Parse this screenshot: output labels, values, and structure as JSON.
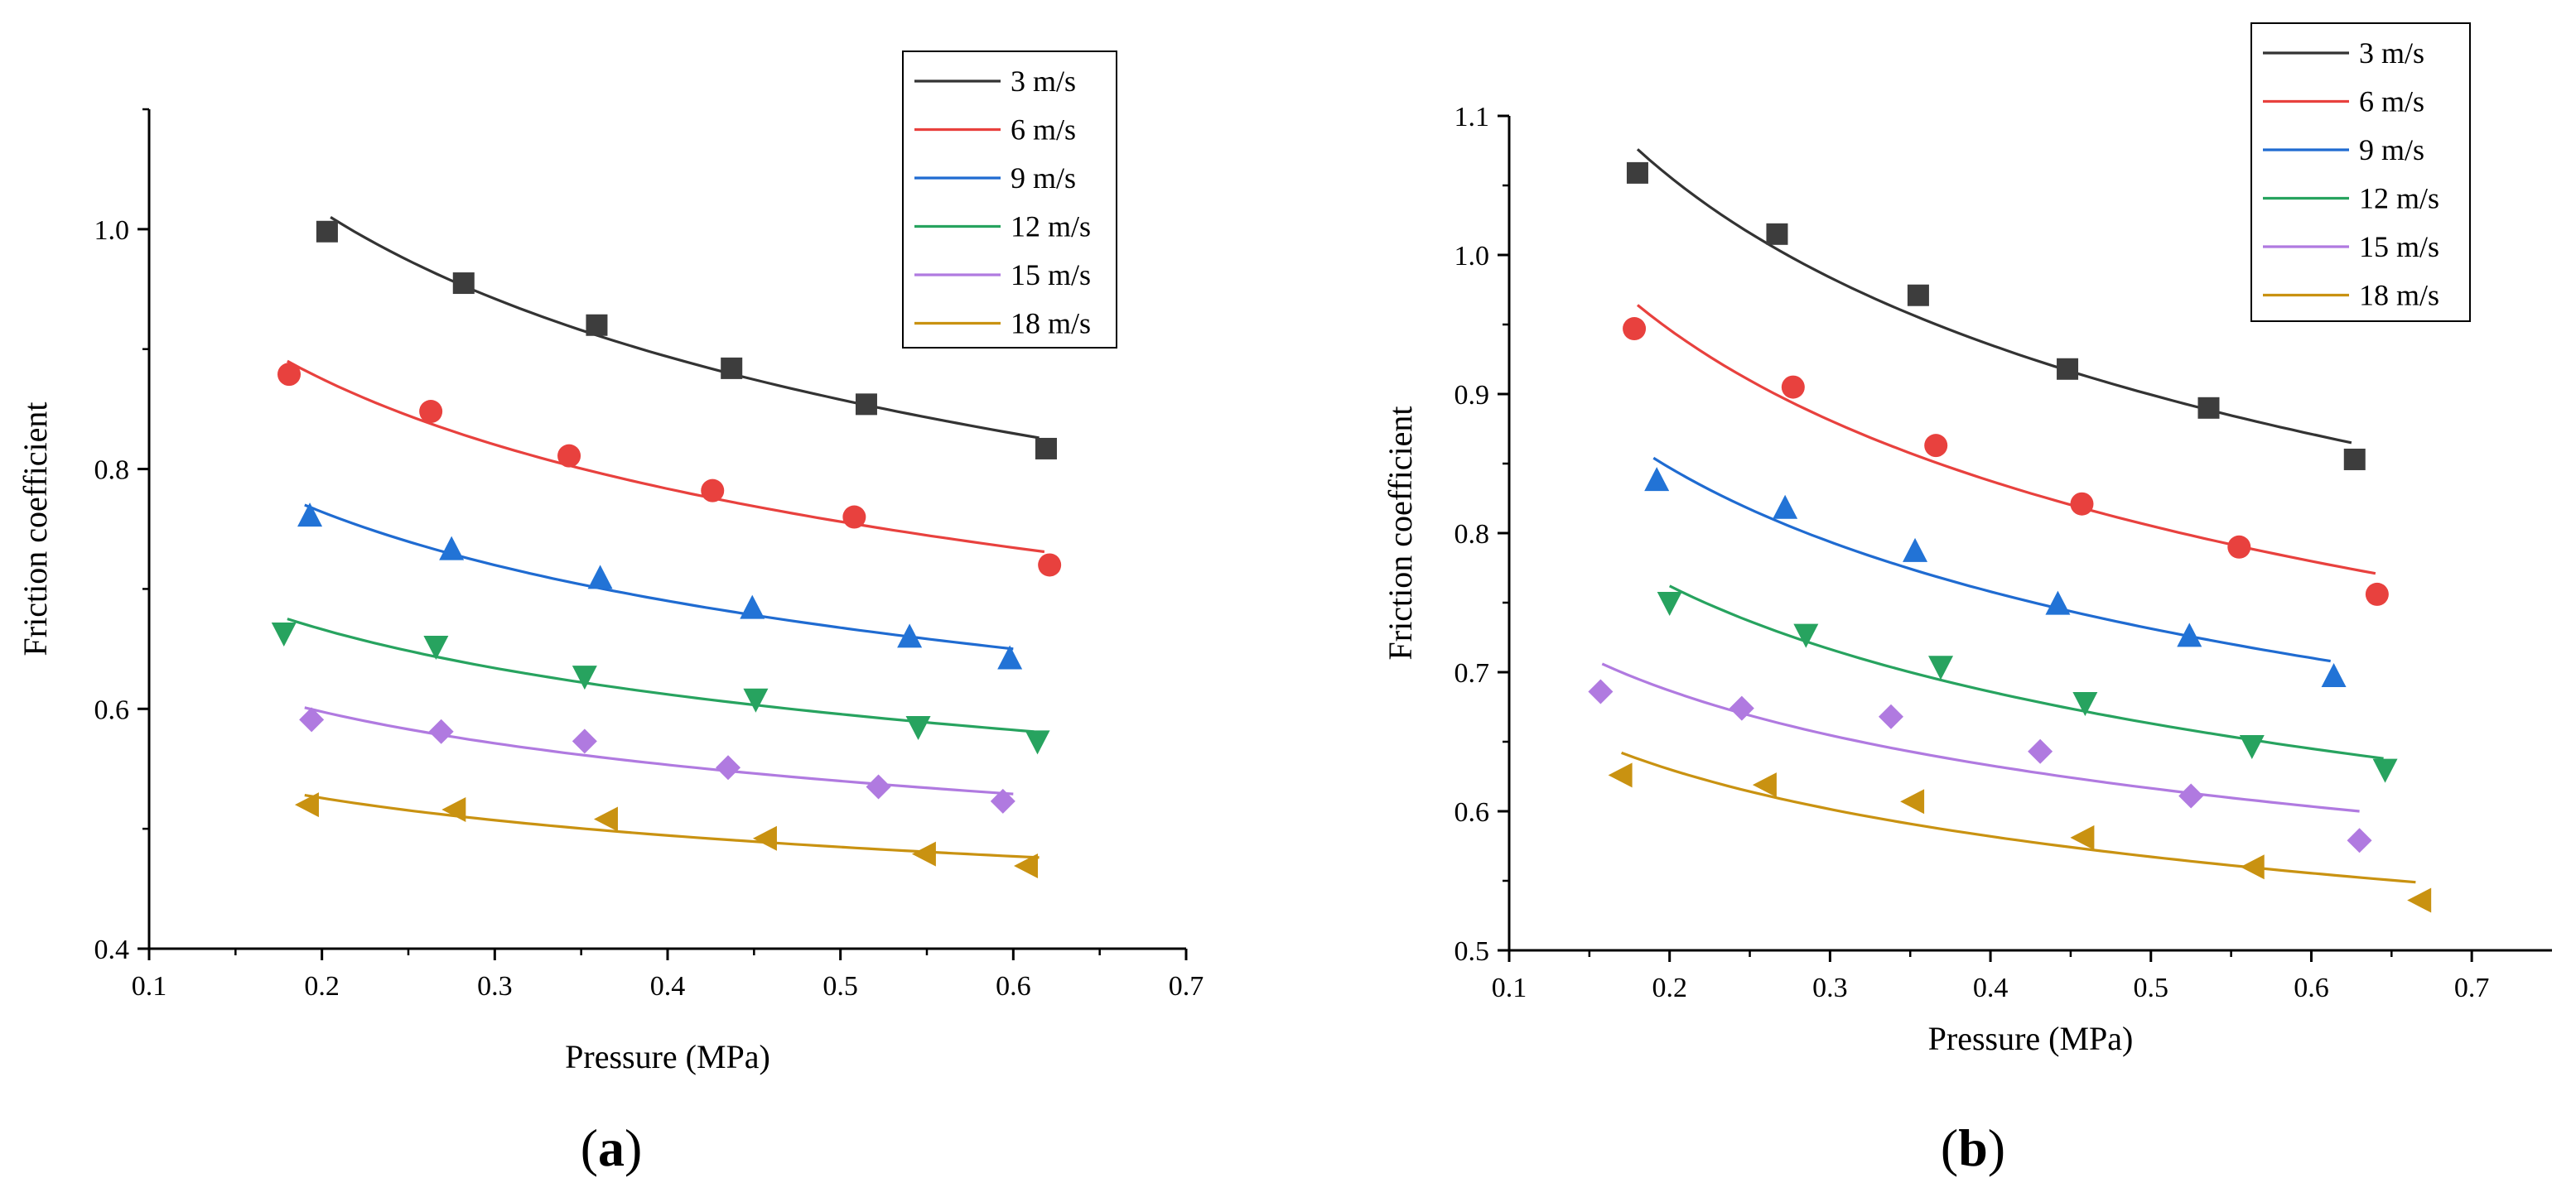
{
  "figure": {
    "panels": [
      {
        "label_open": "(",
        "label_letter": "a",
        "label_close": ")"
      },
      {
        "label_open": "(",
        "label_letter": "b",
        "label_close": ")"
      }
    ]
  },
  "series_styles": [
    {
      "name": "3 m/s",
      "line_color": "#333333",
      "marker_color": "#3d3d3d",
      "marker": "square"
    },
    {
      "name": "6 m/s",
      "line_color": "#e8413e",
      "marker_color": "#e8413e",
      "marker": "circle"
    },
    {
      "name": "9 m/s",
      "line_color": "#1f6bd1",
      "marker_color": "#2273d6",
      "marker": "triangle-up"
    },
    {
      "name": "12 m/s",
      "line_color": "#27a35f",
      "marker_color": "#27a35f",
      "marker": "triangle-down"
    },
    {
      "name": "15 m/s",
      "line_color": "#b07ae0",
      "marker_color": "#b07ae0",
      "marker": "diamond"
    },
    {
      "name": "18 m/s",
      "line_color": "#c99211",
      "marker_color": "#c99211",
      "marker": "triangle-left"
    }
  ],
  "chart_data": [
    {
      "type": "scatter",
      "title": "",
      "xlabel": "Pressure (MPa)",
      "ylabel": "Friction coefficient",
      "xlim": [
        0.1,
        0.7
      ],
      "ylim": [
        0.4,
        1.1
      ],
      "xticks": [
        "0.1",
        "0.2",
        "0.3",
        "0.4",
        "0.5",
        "0.6",
        "0.7"
      ],
      "yticks": [
        "0.4",
        "0.6",
        "0.8",
        "1.0"
      ],
      "legend_position": "top-right",
      "series": [
        {
          "name": "3 m/s",
          "x": [
            0.203,
            0.282,
            0.359,
            0.437,
            0.515,
            0.619
          ],
          "y": [
            0.998,
            0.955,
            0.92,
            0.884,
            0.854,
            0.817
          ],
          "fit_x": [
            0.205,
            0.615
          ],
          "fit_y": [
            1.01,
            0.826
          ]
        },
        {
          "name": "6 m/s",
          "x": [
            0.181,
            0.263,
            0.343,
            0.426,
            0.508,
            0.621
          ],
          "y": [
            0.879,
            0.848,
            0.811,
            0.782,
            0.76,
            0.72
          ],
          "fit_x": [
            0.18,
            0.618
          ],
          "fit_y": [
            0.89,
            0.731
          ]
        },
        {
          "name": "9 m/s",
          "x": [
            0.193,
            0.275,
            0.361,
            0.449,
            0.54,
            0.598
          ],
          "y": [
            0.761,
            0.733,
            0.709,
            0.684,
            0.66,
            0.642
          ],
          "fit_x": [
            0.19,
            0.6
          ],
          "fit_y": [
            0.77,
            0.65
          ]
        },
        {
          "name": "12 m/s",
          "x": [
            0.178,
            0.266,
            0.352,
            0.451,
            0.545,
            0.614
          ],
          "y": [
            0.663,
            0.652,
            0.627,
            0.608,
            0.585,
            0.573
          ],
          "fit_x": [
            0.18,
            0.612
          ],
          "fit_y": [
            0.675,
            0.581
          ]
        },
        {
          "name": "15 m/s",
          "x": [
            0.194,
            0.269,
            0.352,
            0.435,
            0.522,
            0.594
          ],
          "y": [
            0.591,
            0.581,
            0.573,
            0.551,
            0.535,
            0.523
          ],
          "fit_x": [
            0.19,
            0.6
          ],
          "fit_y": [
            0.601,
            0.529
          ]
        },
        {
          "name": "18 m/s",
          "x": [
            0.192,
            0.277,
            0.365,
            0.457,
            0.549,
            0.608
          ],
          "y": [
            0.52,
            0.516,
            0.508,
            0.492,
            0.479,
            0.469
          ],
          "fit_x": [
            0.19,
            0.615
          ],
          "fit_y": [
            0.528,
            0.476
          ]
        }
      ]
    },
    {
      "type": "scatter",
      "title": "",
      "xlabel": "Pressure (MPa)",
      "ylabel": "Friction coefficient",
      "xlim": [
        0.1,
        0.75
      ],
      "ylim": [
        0.5,
        1.1
      ],
      "xticks": [
        "0.1",
        "0.2",
        "0.3",
        "0.4",
        "0.5",
        "0.6",
        "0.7"
      ],
      "yticks": [
        "0.5",
        "0.6",
        "0.7",
        "0.8",
        "0.9",
        "1.0",
        "1.1"
      ],
      "legend_position": "top-right",
      "series": [
        {
          "name": "3 m/s",
          "x": [
            0.18,
            0.267,
            0.355,
            0.448,
            0.536,
            0.627
          ],
          "y": [
            1.059,
            1.015,
            0.971,
            0.918,
            0.89,
            0.853
          ],
          "fit_x": [
            0.18,
            0.625
          ],
          "fit_y": [
            1.076,
            0.865
          ]
        },
        {
          "name": "6 m/s",
          "x": [
            0.178,
            0.277,
            0.366,
            0.457,
            0.555,
            0.641
          ],
          "y": [
            0.947,
            0.905,
            0.863,
            0.821,
            0.79,
            0.756
          ],
          "fit_x": [
            0.18,
            0.64
          ],
          "fit_y": [
            0.964,
            0.771
          ]
        },
        {
          "name": "9 m/s",
          "x": [
            0.192,
            0.272,
            0.353,
            0.442,
            0.524,
            0.614
          ],
          "y": [
            0.838,
            0.818,
            0.787,
            0.749,
            0.726,
            0.697
          ],
          "fit_x": [
            0.19,
            0.612
          ],
          "fit_y": [
            0.854,
            0.708
          ]
        },
        {
          "name": "12 m/s",
          "x": [
            0.2,
            0.285,
            0.369,
            0.459,
            0.563,
            0.646
          ],
          "y": [
            0.75,
            0.727,
            0.704,
            0.678,
            0.647,
            0.63
          ],
          "fit_x": [
            0.2,
            0.645
          ],
          "fit_y": [
            0.762,
            0.638
          ]
        },
        {
          "name": "15 m/s",
          "x": [
            0.157,
            0.245,
            0.338,
            0.431,
            0.525,
            0.63
          ],
          "y": [
            0.686,
            0.674,
            0.668,
            0.643,
            0.611,
            0.579
          ],
          "fit_x": [
            0.158,
            0.63
          ],
          "fit_y": [
            0.706,
            0.6
          ]
        },
        {
          "name": "18 m/s",
          "x": [
            0.17,
            0.26,
            0.352,
            0.458,
            0.564,
            0.668
          ],
          "y": [
            0.626,
            0.619,
            0.607,
            0.581,
            0.56,
            0.536
          ],
          "fit_x": [
            0.17,
            0.665
          ],
          "fit_y": [
            0.642,
            0.549
          ]
        }
      ]
    }
  ]
}
